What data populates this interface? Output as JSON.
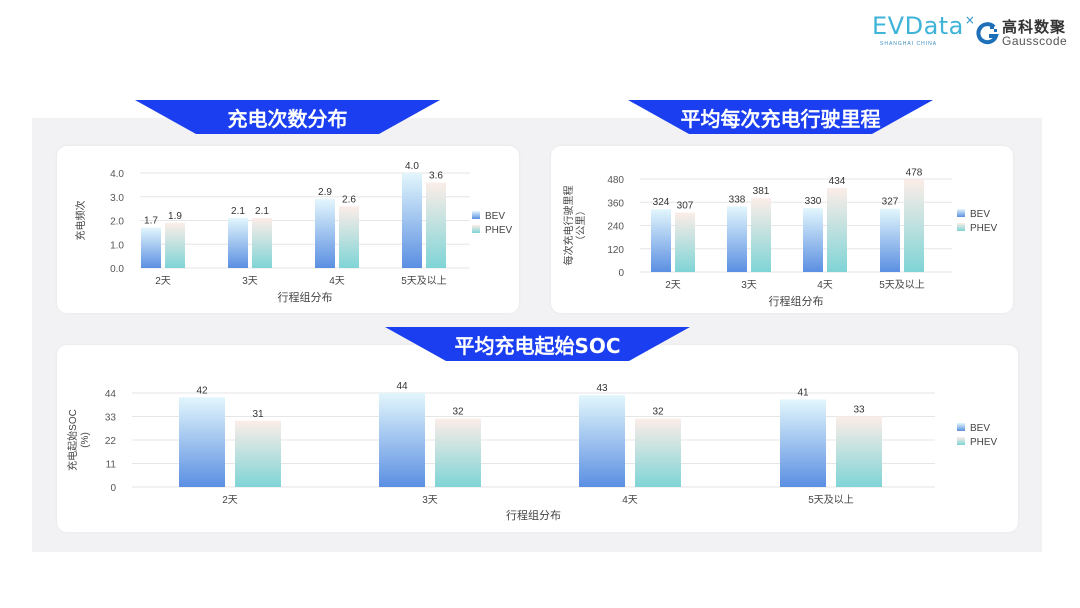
{
  "logos": {
    "evdata": "EVData",
    "evdata_sub": "SHANGHAI CHINA",
    "gauss_cn": "高科数聚",
    "gauss_en": "Gausscode"
  },
  "colors": {
    "banner": "#1b3ff0",
    "bev_top": "#e2f6fc",
    "bev_bottom": "#5b8fe2",
    "phev_top": "#fcede8",
    "phev_bottom": "#7fd4d6"
  },
  "chart_data": [
    {
      "type": "bar",
      "title": "充电次数分布",
      "categories": [
        "2天",
        "3天",
        "4天",
        "5天及以上"
      ],
      "series": [
        {
          "name": "BEV",
          "values": [
            1.7,
            2.1,
            2.9,
            4.0
          ]
        },
        {
          "name": "PHEV",
          "values": [
            1.9,
            2.1,
            2.6,
            3.6
          ]
        }
      ],
      "value_labels": [
        [
          "1.7",
          "2.1",
          "2.9",
          "4.0"
        ],
        [
          "1.9",
          "2.1",
          "2.6",
          "3.6"
        ]
      ],
      "ylabel": "充电频次",
      "xlabel": "行程组分布",
      "ylim": [
        0,
        4
      ],
      "yticks": [
        "0.0",
        "1.0",
        "2.0",
        "3.0",
        "4.0"
      ],
      "grid": true,
      "legend": "right"
    },
    {
      "type": "bar",
      "title": "平均每次充电行驶里程",
      "categories": [
        "2天",
        "3天",
        "4天",
        "5天及以上"
      ],
      "series": [
        {
          "name": "BEV",
          "values": [
            324,
            338,
            330,
            327
          ]
        },
        {
          "name": "PHEV",
          "values": [
            307,
            381,
            434,
            478
          ]
        }
      ],
      "value_labels": [
        [
          "324",
          "338",
          "330",
          "327"
        ],
        [
          "307",
          "381",
          "434",
          "478"
        ]
      ],
      "ylabel": "每次充电行驶里程",
      "ylabel2": "（公里）",
      "xlabel": "行程组分布",
      "ylim": [
        0,
        480
      ],
      "yticks": [
        "0",
        "120",
        "240",
        "360",
        "480"
      ],
      "grid": true,
      "legend": "right"
    },
    {
      "type": "bar",
      "title": "平均充电起始SOC",
      "categories": [
        "2天",
        "3天",
        "4天",
        "5天及以上"
      ],
      "series": [
        {
          "name": "BEV",
          "values": [
            42,
            44,
            43,
            41
          ]
        },
        {
          "name": "PHEV",
          "values": [
            31,
            32,
            32,
            33
          ]
        }
      ],
      "value_labels": [
        [
          "42",
          "44",
          "43",
          "41"
        ],
        [
          "31",
          "32",
          "32",
          "33"
        ]
      ],
      "ylabel": "充电起始SOC",
      "ylabel2": "(%)",
      "xlabel": "行程组分布",
      "ylim": [
        0,
        44
      ],
      "yticks": [
        "0",
        "11",
        "22",
        "33",
        "44"
      ],
      "grid": true,
      "legend": "right"
    }
  ]
}
